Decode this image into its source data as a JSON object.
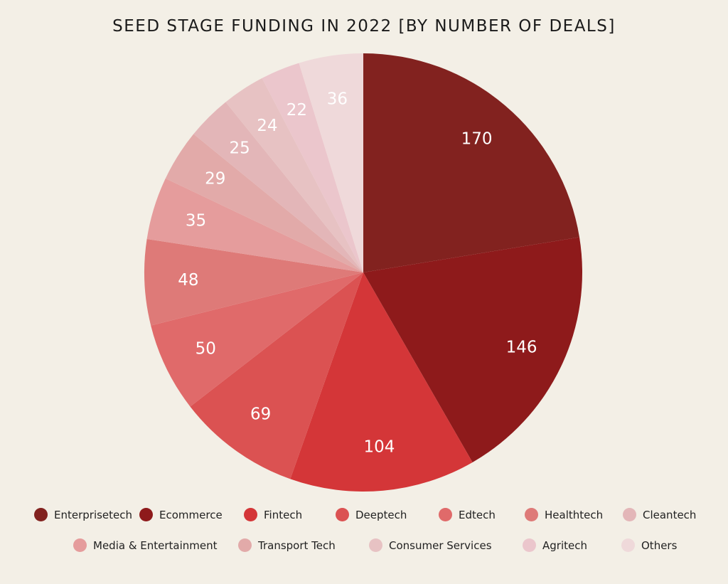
{
  "chart_data": {
    "type": "pie",
    "title": "SEED STAGE FUNDING IN 2022 [BY NUMBER OF DEALS]",
    "slices": [
      {
        "name": "Enterprisetech",
        "value": 170,
        "label": "170",
        "color": "#82221f"
      },
      {
        "name": "Ecommerce",
        "value": 146,
        "label": "146",
        "color": "#8e1a1b"
      },
      {
        "name": "Fintech",
        "value": 104,
        "label": "104",
        "color": "#d43638"
      },
      {
        "name": "Deeptech",
        "value": 69,
        "label": "69",
        "color": "#db5252"
      },
      {
        "name": "Edtech",
        "value": 50,
        "label": "50",
        "color": "#e06a6a"
      },
      {
        "name": "Healthtech",
        "value": 48,
        "label": "48",
        "color": "#de7a78"
      },
      {
        "name": "Media & Entertainment",
        "value": 35,
        "label": "35",
        "color": "#e59c9c"
      },
      {
        "name": "Transport Tech",
        "value": 29,
        "label": "29",
        "color": "#e2aaa9"
      },
      {
        "name": "Cleantech",
        "value": 25,
        "label": "25",
        "color": "#e3b6b8"
      },
      {
        "name": "Consumer Services",
        "value": 24,
        "label": "24",
        "color": "#e7c2c3"
      },
      {
        "name": "Agritech",
        "value": 22,
        "label": "22",
        "color": "#ebc6cc"
      },
      {
        "name": "Others",
        "value": 36,
        "label": "36",
        "color": "#efd9da"
      }
    ],
    "legend": {
      "placement": "bottom",
      "items": [
        {
          "label": "Enterprisetech",
          "color": "#82221f"
        },
        {
          "label": "Ecommerce",
          "color": "#8e1a1b"
        },
        {
          "label": "Fintech",
          "color": "#d43638"
        },
        {
          "label": "Deeptech",
          "color": "#db5252"
        },
        {
          "label": "Edtech",
          "color": "#e06a6a"
        },
        {
          "label": "Healthtech",
          "color": "#de7a78"
        },
        {
          "label": "Cleantech",
          "color": "#e3b6b8"
        },
        {
          "label": "Media & Entertainment",
          "color": "#e59c9c"
        },
        {
          "label": "Transport Tech",
          "color": "#e2aaa9"
        },
        {
          "label": "Consumer Services",
          "color": "#e7c2c3"
        },
        {
          "label": "Agritech",
          "color": "#ebc6cc"
        },
        {
          "label": "Others",
          "color": "#efd9da"
        }
      ]
    }
  }
}
